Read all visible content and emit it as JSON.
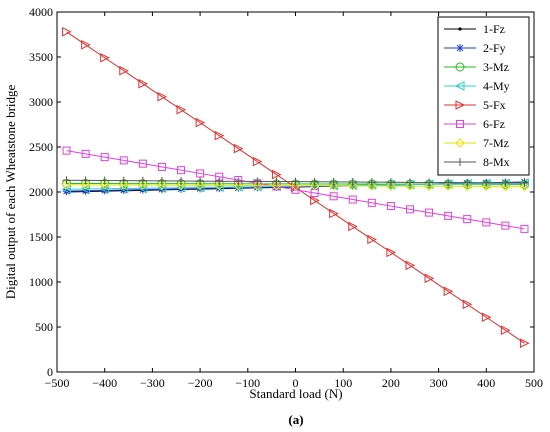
{
  "chart_data": {
    "type": "line",
    "xlabel": "Standard load (N)",
    "ylabel": "Digital output of each Wheatstone bridge",
    "caption": "(a)",
    "xlim": [
      -500,
      500
    ],
    "ylim": [
      0,
      4000
    ],
    "xticks": [
      -500,
      -400,
      -300,
      -200,
      -100,
      0,
      100,
      200,
      300,
      400,
      500
    ],
    "yticks": [
      0,
      500,
      1000,
      1500,
      2000,
      2500,
      3000,
      3500,
      4000
    ],
    "xtick_labels": [
      "−500",
      "−400",
      "−300",
      "−200",
      "−100",
      "0",
      "100",
      "200",
      "300",
      "400",
      "500"
    ],
    "ytick_labels": [
      "0",
      "500",
      "1000",
      "1500",
      "2000",
      "2500",
      "3000",
      "3500",
      "4000"
    ],
    "legend_position": "top-right",
    "x": [
      -480,
      -440,
      -400,
      -360,
      -320,
      -280,
      -240,
      -200,
      -160,
      -120,
      -80,
      -40,
      0,
      40,
      80,
      120,
      160,
      200,
      240,
      280,
      320,
      360,
      400,
      440,
      480
    ],
    "series": [
      {
        "name": "1-Fz",
        "color": "#000000",
        "marker": "dot",
        "start": 2000,
        "end": 2110
      },
      {
        "name": "2-Fy",
        "color": "#1f3fd6",
        "marker": "star",
        "start": 2010,
        "end": 2110
      },
      {
        "name": "3-Mz",
        "color": "#1fbf1f",
        "marker": "circle",
        "start": 2095,
        "end": 2085
      },
      {
        "name": "4-My",
        "color": "#33cccc",
        "marker": "triangle-left",
        "start": 2030,
        "end": 2100
      },
      {
        "name": "5-Fx",
        "color": "#e03030",
        "marker": "triangle-right",
        "start": 3780,
        "end": 320
      },
      {
        "name": "6-Fz",
        "color": "#e040e0",
        "marker": "square",
        "start": 2460,
        "end": 1590
      },
      {
        "name": "7-Mz",
        "color": "#e6e600",
        "marker": "diamond",
        "start": 2080,
        "end": 2060
      },
      {
        "name": "8-Mx",
        "color": "#555555",
        "marker": "plus",
        "start": 2130,
        "end": 2100
      }
    ]
  }
}
